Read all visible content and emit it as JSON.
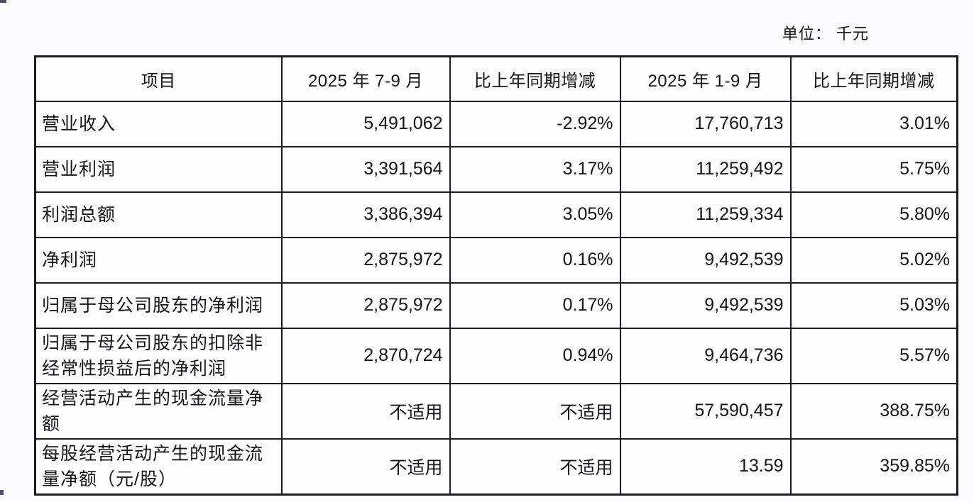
{
  "page": {
    "unit_label": "单位： 千元"
  },
  "colors": {
    "page-bg": "#fcfcfe",
    "border": "#1b1b24",
    "text": "#15151c"
  },
  "table": {
    "columns": [
      "项目",
      "2025 年 7-9 月",
      "比上年同期增减",
      "2025 年 1-9 月",
      "比上年同期增减"
    ],
    "rows": [
      [
        "营业收入",
        "5,491,062",
        "-2.92%",
        "17,760,713",
        "3.01%"
      ],
      [
        "营业利润",
        "3,391,564",
        "3.17%",
        "11,259,492",
        "5.75%"
      ],
      [
        "利润总额",
        "3,386,394",
        "3.05%",
        "11,259,334",
        "5.80%"
      ],
      [
        "净利润",
        "2,875,972",
        "0.16%",
        "9,492,539",
        "5.02%"
      ],
      [
        "归属于母公司股东的净利润",
        "2,875,972",
        "0.17%",
        "9,492,539",
        "5.03%"
      ],
      [
        "归属于母公司股东的扣除非经常性损益后的净利润",
        "2,870,724",
        "0.94%",
        "9,464,736",
        "5.57%"
      ],
      [
        "经营活动产生的现金流量净额",
        "不适用",
        "不适用",
        "57,590,457",
        "388.75%"
      ],
      [
        "每股经营活动产生的现金流量净额（元/股）",
        "不适用",
        "不适用",
        "13.59",
        "359.85%"
      ]
    ]
  }
}
